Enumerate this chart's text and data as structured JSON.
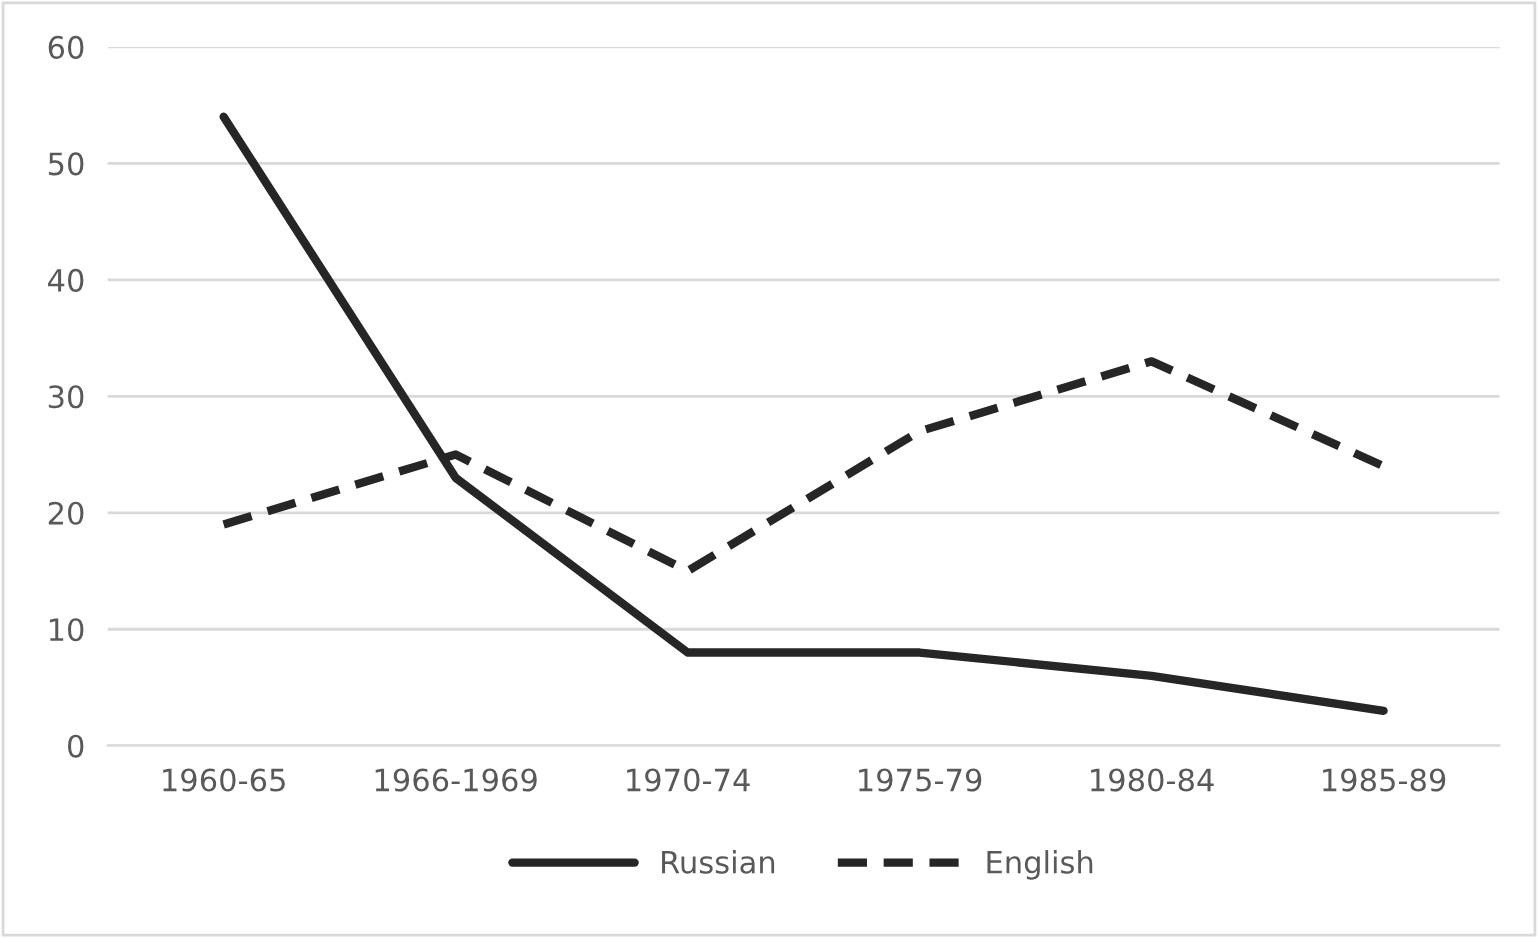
{
  "chart_data": {
    "type": "line",
    "categories": [
      "1960-65",
      "1966-1969",
      "1970-74",
      "1975-79",
      "1980-84",
      "1985-89"
    ],
    "series": [
      {
        "name": "Russian",
        "color": "#262626",
        "line_style": "solid",
        "values": [
          54,
          23,
          8,
          8,
          6,
          3
        ]
      },
      {
        "name": "English",
        "color": "#262626",
        "line_style": "dashed",
        "values": [
          19,
          25,
          15,
          27,
          33,
          24
        ]
      }
    ],
    "ylim": [
      0,
      60
    ],
    "yticks": [
      0,
      10,
      20,
      30,
      40,
      50,
      60
    ],
    "grid": "y",
    "legend": "bottom",
    "marker": "none"
  }
}
